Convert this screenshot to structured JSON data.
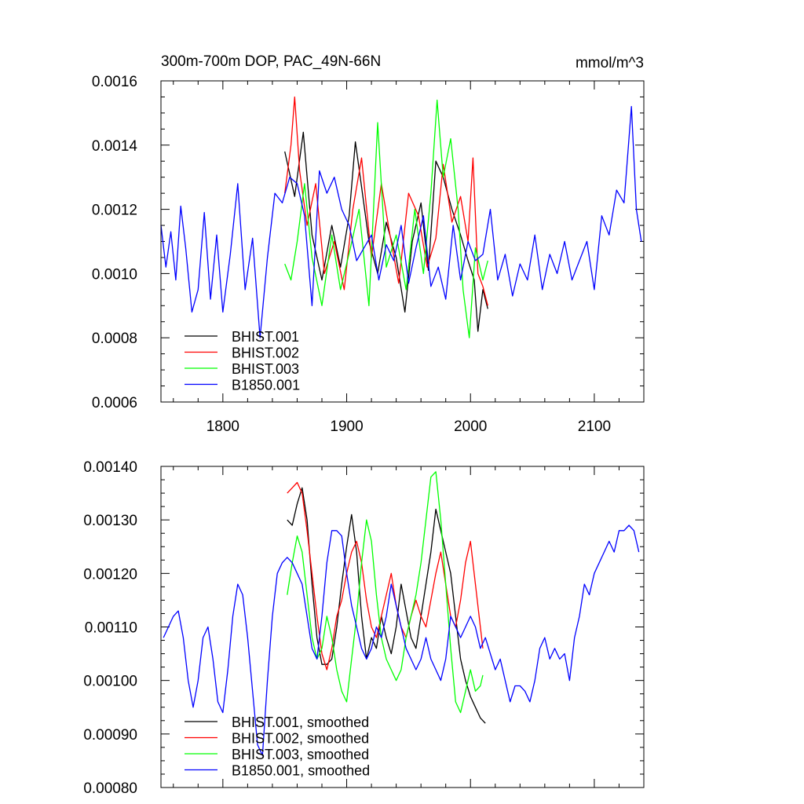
{
  "chart_data": [
    {
      "type": "line",
      "title": "300m-700m DOP, PAC_49N-66N",
      "units": "mmol/m^3",
      "xlim": [
        1750,
        2140
      ],
      "ylim": [
        0.0006,
        0.0016
      ],
      "x_ticks": [
        1800,
        1900,
        2000,
        2100
      ],
      "x_tick_labels": [
        "1800",
        "1900",
        "2000",
        "2100"
      ],
      "y_ticks": [
        0.0006,
        0.0008,
        0.001,
        0.0012,
        0.0014,
        0.0016
      ],
      "y_tick_labels": [
        "0.0006",
        "0.0008",
        "0.0010",
        "0.0012",
        "0.0014",
        "0.0016"
      ],
      "legend": "bottom-left",
      "grid": false,
      "series": [
        {
          "name": "BHIST.001",
          "color": "#000000",
          "x": [
            1850,
            1858,
            1865,
            1872,
            1880,
            1888,
            1895,
            1902,
            1907,
            1912,
            1918,
            1925,
            1932,
            1940,
            1947,
            1953,
            1960,
            1966,
            1972,
            1978,
            1985,
            1992,
            1998,
            2003,
            2006,
            2010,
            2014
          ],
          "y": [
            0.00138,
            0.00124,
            0.00144,
            0.00112,
            0.00098,
            0.00115,
            0.00102,
            0.00118,
            0.00141,
            0.00127,
            0.0011,
            0.001,
            0.00116,
            0.00105,
            0.00088,
            0.0011,
            0.00122,
            0.00101,
            0.00135,
            0.0013,
            0.0012,
            0.00112,
            0.00104,
            0.00098,
            0.00082,
            0.00095,
            0.00089
          ]
        },
        {
          "name": "BHIST.002",
          "color": "#ff0000",
          "x": [
            1850,
            1855,
            1858,
            1862,
            1868,
            1875,
            1882,
            1890,
            1898,
            1905,
            1912,
            1920,
            1928,
            1935,
            1942,
            1950,
            1958,
            1965,
            1972,
            1978,
            1985,
            1992,
            1998,
            2002,
            2006,
            2010,
            2014
          ],
          "y": [
            0.00125,
            0.0014,
            0.00155,
            0.00132,
            0.00115,
            0.00128,
            0.001,
            0.0011,
            0.00095,
            0.0012,
            0.00136,
            0.00105,
            0.00128,
            0.00112,
            0.00097,
            0.00125,
            0.00118,
            0.00102,
            0.00111,
            0.00134,
            0.00116,
            0.00124,
            0.0011,
            0.00136,
            0.001,
            0.00096,
            0.0009
          ]
        },
        {
          "name": "BHIST.003",
          "color": "#00ff00",
          "x": [
            1850,
            1855,
            1860,
            1866,
            1872,
            1880,
            1888,
            1895,
            1903,
            1910,
            1918,
            1925,
            1932,
            1940,
            1948,
            1955,
            1962,
            1968,
            1973,
            1978,
            1984,
            1990,
            1994,
            1999,
            2004,
            2010,
            2014
          ],
          "y": [
            0.00103,
            0.00098,
            0.0011,
            0.00128,
            0.00105,
            0.0009,
            0.00112,
            0.00095,
            0.00108,
            0.0012,
            0.0009,
            0.00147,
            0.00102,
            0.00112,
            0.00095,
            0.0012,
            0.001,
            0.00125,
            0.00154,
            0.0013,
            0.00142,
            0.0012,
            0.00095,
            0.0008,
            0.00108,
            0.00098,
            0.00104
          ]
        },
        {
          "name": "B1850.001",
          "color": "#0000ff",
          "x": [
            1750,
            1754,
            1758,
            1762,
            1766,
            1770,
            1775,
            1780,
            1785,
            1790,
            1795,
            1800,
            1806,
            1812,
            1818,
            1824,
            1830,
            1836,
            1842,
            1848,
            1854,
            1860,
            1866,
            1872,
            1878,
            1884,
            1890,
            1896,
            1902,
            1908,
            1914,
            1920,
            1926,
            1932,
            1938,
            1944,
            1950,
            1956,
            1962,
            1968,
            1974,
            1980,
            1986,
            1992,
            1998,
            2004,
            2010,
            2016,
            2022,
            2028,
            2034,
            2040,
            2046,
            2052,
            2058,
            2064,
            2070,
            2076,
            2082,
            2088,
            2094,
            2100,
            2106,
            2112,
            2118,
            2124,
            2130,
            2134,
            2138
          ],
          "y": [
            0.00115,
            0.00102,
            0.00113,
            0.00098,
            0.00121,
            0.00108,
            0.00088,
            0.00095,
            0.00119,
            0.00092,
            0.00112,
            0.00088,
            0.00106,
            0.00128,
            0.00095,
            0.00111,
            0.0008,
            0.00105,
            0.00125,
            0.00122,
            0.0013,
            0.00128,
            0.00118,
            0.0009,
            0.00132,
            0.00125,
            0.0013,
            0.0012,
            0.00115,
            0.00104,
            0.00108,
            0.00112,
            0.00098,
            0.00109,
            0.00104,
            0.00115,
            0.00097,
            0.00108,
            0.00118,
            0.00096,
            0.00102,
            0.00092,
            0.00115,
            0.00098,
            0.0011,
            0.00104,
            0.00106,
            0.0012,
            0.00098,
            0.00106,
            0.00093,
            0.00103,
            0.00098,
            0.00112,
            0.00095,
            0.00106,
            0.001,
            0.0011,
            0.00098,
            0.00104,
            0.0011,
            0.00095,
            0.00118,
            0.00112,
            0.00126,
            0.00122,
            0.00152,
            0.0012,
            0.0011
          ]
        }
      ]
    },
    {
      "type": "line",
      "xlim": [
        1750,
        2140
      ],
      "ylim": [
        0.0008,
        0.0014
      ],
      "x_ticks": [
        1800,
        1900,
        2000,
        2100
      ],
      "y_ticks": [
        0.0008,
        0.0009,
        0.001,
        0.0011,
        0.0012,
        0.0013,
        0.0014
      ],
      "y_tick_labels": [
        "0.00080",
        "0.00090",
        "0.00100",
        "0.00110",
        "0.00120",
        "0.00130",
        "0.00140"
      ],
      "legend": "bottom-left",
      "grid": false,
      "series": [
        {
          "name": "BHIST.001, smoothed",
          "color": "#000000",
          "x": [
            1852,
            1856,
            1860,
            1864,
            1868,
            1872,
            1876,
            1880,
            1884,
            1888,
            1892,
            1896,
            1900,
            1904,
            1908,
            1912,
            1916,
            1920,
            1924,
            1928,
            1932,
            1936,
            1940,
            1944,
            1948,
            1952,
            1956,
            1960,
            1964,
            1968,
            1972,
            1976,
            1980,
            1984,
            1988,
            1992,
            1996,
            2000,
            2004,
            2008,
            2012
          ],
          "y": [
            0.0013,
            0.00129,
            0.00133,
            0.00136,
            0.0013,
            0.00118,
            0.00108,
            0.00103,
            0.00103,
            0.00104,
            0.0011,
            0.00118,
            0.00125,
            0.00131,
            0.00124,
            0.00112,
            0.00104,
            0.00108,
            0.00106,
            0.00112,
            0.00108,
            0.00105,
            0.0011,
            0.00118,
            0.00113,
            0.00108,
            0.00106,
            0.00112,
            0.00118,
            0.00124,
            0.00132,
            0.00128,
            0.00124,
            0.0012,
            0.00112,
            0.00104,
            0.001,
            0.00097,
            0.00095,
            0.00093,
            0.00092
          ]
        },
        {
          "name": "BHIST.002, smoothed",
          "color": "#ff0000",
          "x": [
            1852,
            1856,
            1860,
            1864,
            1868,
            1872,
            1876,
            1880,
            1884,
            1888,
            1892,
            1896,
            1900,
            1904,
            1908,
            1912,
            1916,
            1920,
            1924,
            1928,
            1932,
            1936,
            1940,
            1944,
            1948,
            1952,
            1956,
            1960,
            1964,
            1968,
            1972,
            1976,
            1980,
            1984,
            1988,
            1992,
            1996,
            2000,
            2004,
            2008,
            2010
          ],
          "y": [
            0.00135,
            0.00136,
            0.00137,
            0.00135,
            0.00128,
            0.0012,
            0.00112,
            0.00105,
            0.00102,
            0.00106,
            0.00112,
            0.00115,
            0.0012,
            0.00124,
            0.00126,
            0.00122,
            0.00115,
            0.0011,
            0.00108,
            0.00112,
            0.00116,
            0.0012,
            0.00114,
            0.0011,
            0.00108,
            0.00112,
            0.00115,
            0.00112,
            0.0011,
            0.00115,
            0.0012,
            0.00124,
            0.00118,
            0.00112,
            0.0011,
            0.00115,
            0.00122,
            0.00126,
            0.00118,
            0.0011,
            0.00106
          ]
        },
        {
          "name": "BHIST.003, smoothed",
          "color": "#00ff00",
          "x": [
            1852,
            1856,
            1860,
            1864,
            1868,
            1872,
            1876,
            1880,
            1884,
            1888,
            1892,
            1896,
            1900,
            1904,
            1908,
            1912,
            1916,
            1920,
            1924,
            1928,
            1932,
            1936,
            1940,
            1944,
            1948,
            1952,
            1956,
            1960,
            1964,
            1968,
            1972,
            1976,
            1980,
            1984,
            1988,
            1992,
            1996,
            2000,
            2004,
            2008,
            2010
          ],
          "y": [
            0.00116,
            0.00122,
            0.00127,
            0.00124,
            0.00116,
            0.00108,
            0.00104,
            0.00106,
            0.00112,
            0.00108,
            0.00102,
            0.00098,
            0.00096,
            0.00104,
            0.00112,
            0.00122,
            0.0013,
            0.00126,
            0.00116,
            0.00108,
            0.00104,
            0.00102,
            0.001,
            0.00102,
            0.00108,
            0.00112,
            0.00116,
            0.00122,
            0.0013,
            0.00138,
            0.00139,
            0.0013,
            0.00118,
            0.00106,
            0.00096,
            0.00094,
            0.00098,
            0.00102,
            0.00098,
            0.00099,
            0.00101
          ]
        },
        {
          "name": "B1850.001, smoothed",
          "color": "#0000ff",
          "x": [
            1752,
            1756,
            1760,
            1764,
            1768,
            1772,
            1776,
            1780,
            1784,
            1788,
            1792,
            1796,
            1800,
            1804,
            1808,
            1812,
            1816,
            1820,
            1824,
            1828,
            1832,
            1836,
            1840,
            1844,
            1848,
            1852,
            1856,
            1860,
            1864,
            1868,
            1872,
            1876,
            1880,
            1884,
            1888,
            1892,
            1896,
            1900,
            1904,
            1908,
            1912,
            1916,
            1920,
            1924,
            1928,
            1932,
            1936,
            1940,
            1944,
            1948,
            1952,
            1956,
            1960,
            1964,
            1968,
            1972,
            1976,
            1980,
            1984,
            1988,
            1992,
            1996,
            2000,
            2004,
            2008,
            2012,
            2016,
            2020,
            2024,
            2028,
            2032,
            2036,
            2040,
            2044,
            2048,
            2052,
            2056,
            2060,
            2064,
            2068,
            2072,
            2076,
            2080,
            2084,
            2088,
            2092,
            2096,
            2100,
            2104,
            2108,
            2112,
            2116,
            2120,
            2124,
            2128,
            2132,
            2136
          ],
          "y": [
            0.00108,
            0.0011,
            0.00112,
            0.00113,
            0.00108,
            0.001,
            0.00095,
            0.001,
            0.00108,
            0.0011,
            0.00104,
            0.00096,
            0.00094,
            0.00102,
            0.00112,
            0.00118,
            0.00116,
            0.00108,
            0.00098,
            0.00088,
            0.00086,
            0.001,
            0.00112,
            0.0012,
            0.00122,
            0.00123,
            0.00122,
            0.0012,
            0.00118,
            0.00112,
            0.00106,
            0.00104,
            0.00112,
            0.00122,
            0.00128,
            0.00128,
            0.00127,
            0.0012,
            0.00114,
            0.0011,
            0.00106,
            0.00104,
            0.00106,
            0.0011,
            0.00108,
            0.00112,
            0.00118,
            0.00114,
            0.0011,
            0.00106,
            0.00104,
            0.00102,
            0.00104,
            0.00108,
            0.00104,
            0.00102,
            0.001,
            0.00104,
            0.00112,
            0.0011,
            0.00108,
            0.0011,
            0.00112,
            0.0011,
            0.00106,
            0.00108,
            0.00105,
            0.00102,
            0.00104,
            0.001,
            0.00096,
            0.00099,
            0.00099,
            0.00098,
            0.00096,
            0.001,
            0.00106,
            0.00108,
            0.00104,
            0.00106,
            0.00104,
            0.00105,
            0.001,
            0.00108,
            0.00112,
            0.00118,
            0.00116,
            0.0012,
            0.00122,
            0.00124,
            0.00126,
            0.00124,
            0.00128,
            0.00128,
            0.00129,
            0.00128,
            0.00124
          ]
        }
      ]
    }
  ]
}
